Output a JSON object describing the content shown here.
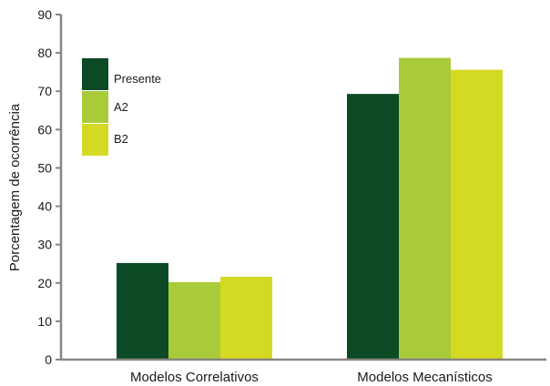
{
  "chart_data": {
    "type": "bar",
    "title": "",
    "xlabel": "",
    "ylabel": "Porcentagem de ocorrência",
    "ylim": [
      0,
      90
    ],
    "yticks": [
      0,
      10,
      20,
      30,
      40,
      50,
      60,
      70,
      80,
      90
    ],
    "categories": [
      "Modelos Correlativos",
      "Modelos Mecanísticos"
    ],
    "series": [
      {
        "name": "Presente",
        "color": "#0b4a25",
        "values": [
          25.2,
          69.3
        ]
      },
      {
        "name": "A2",
        "color": "#a9cb3a",
        "values": [
          20.2,
          78.7
        ]
      },
      {
        "name": "B2",
        "color": "#d4d923",
        "values": [
          21.6,
          75.6
        ]
      }
    ],
    "legend_position": "top-left",
    "grid": false
  }
}
